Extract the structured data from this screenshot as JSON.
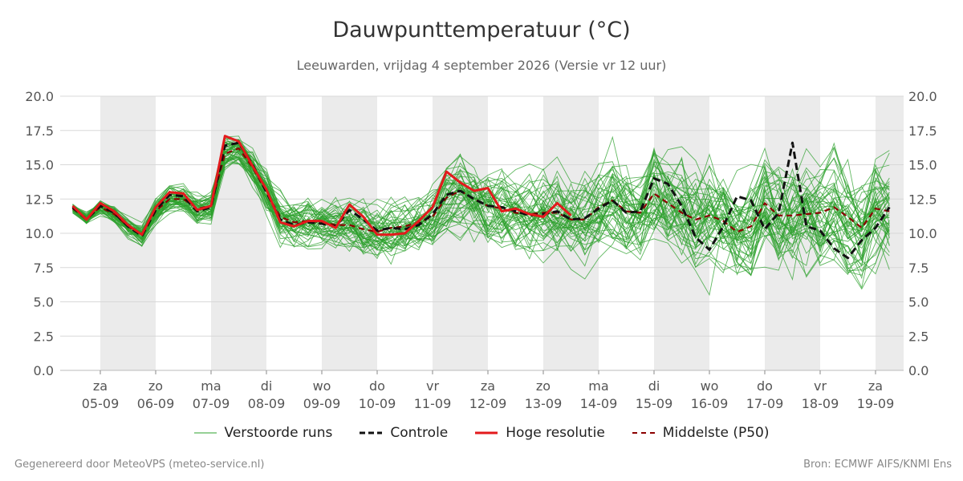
{
  "header": {
    "title": "Dauwpunttemperatuur (°C)",
    "subtitle": "Leeuwarden, vrijdag  4 september 2026 (Versie vr 12 uur)"
  },
  "footer": {
    "left": "Gegenereerd door MeteoVPS (meteo-service.nl)",
    "right": "Bron: ECMWF AIFS/KNMI Ens"
  },
  "legend": {
    "items": [
      {
        "label": "Verstoorde runs",
        "color": "#2ca02c",
        "style": "thin-solid"
      },
      {
        "label": "Controle",
        "color": "#111111",
        "style": "dashed"
      },
      {
        "label": "Hoge resolutie",
        "color": "#e31a1c",
        "style": "solid"
      },
      {
        "label": "Middelste (P50)",
        "color": "#8b0000",
        "style": "dashed"
      }
    ]
  },
  "chart_data": {
    "type": "line",
    "title": "Dauwpunttemperatuur (°C)",
    "ylim": [
      0,
      20
    ],
    "yticks": [
      0.0,
      2.5,
      5.0,
      7.5,
      10.0,
      12.5,
      15.0,
      17.5,
      20.0
    ],
    "ytick_labels": [
      "0.0",
      "2.5",
      "5.0",
      "7.5",
      "10.0",
      "12.5",
      "15.0",
      "17.5",
      "20.0"
    ],
    "xlim_days": [
      0,
      15.25
    ],
    "x_ticks": [
      {
        "day": "za",
        "date": "05-09"
      },
      {
        "day": "zo",
        "date": "06-09"
      },
      {
        "day": "ma",
        "date": "07-09"
      },
      {
        "day": "di",
        "date": "08-09"
      },
      {
        "day": "wo",
        "date": "09-09"
      },
      {
        "day": "do",
        "date": "10-09"
      },
      {
        "day": "vr",
        "date": "11-09"
      },
      {
        "day": "za",
        "date": "12-09"
      },
      {
        "day": "zo",
        "date": "13-09"
      },
      {
        "day": "ma",
        "date": "14-09"
      },
      {
        "day": "di",
        "date": "15-09"
      },
      {
        "day": "wo",
        "date": "16-09"
      },
      {
        "day": "do",
        "date": "17-09"
      },
      {
        "day": "vr",
        "date": "18-09"
      },
      {
        "day": "za",
        "date": "19-09"
      }
    ],
    "grid": true,
    "weekend_shading": true,
    "legend_position": "bottom-center",
    "colors": {
      "ensemble": "#2ca02c",
      "control": "#111111",
      "highres": "#e31a1c",
      "median": "#8b0000",
      "shade": "#ebebeb"
    },
    "series": [
      {
        "name": "Hoge resolutie",
        "x": [
          0.5,
          0.75,
          1.0,
          1.25,
          1.5,
          1.75,
          2.0,
          2.25,
          2.5,
          2.75,
          3.0,
          3.25,
          3.5,
          3.75,
          4.0,
          4.25,
          4.5,
          4.75,
          5.0,
          5.25,
          5.5,
          5.75,
          6.0,
          6.25,
          6.5,
          6.75,
          7.0,
          7.25,
          7.5,
          7.75,
          8.0,
          8.25,
          8.5,
          8.75,
          9.0,
          9.25,
          9.5
        ],
        "values": [
          12.0,
          11.0,
          12.2,
          11.6,
          10.6,
          9.9,
          11.9,
          13.0,
          12.9,
          11.7,
          12.0,
          17.1,
          16.7,
          14.9,
          13.2,
          10.8,
          10.5,
          10.9,
          10.9,
          10.4,
          12.1,
          11.2,
          9.9,
          9.9,
          10.0,
          10.9,
          11.9,
          14.5,
          13.7,
          13.1,
          13.3,
          11.6,
          11.8,
          11.4,
          11.2,
          12.2,
          11.3
        ]
      },
      {
        "name": "Controle",
        "x": [
          0.5,
          0.75,
          1.0,
          1.25,
          1.5,
          1.75,
          2.0,
          2.25,
          2.5,
          2.75,
          3.0,
          3.25,
          3.5,
          3.75,
          4.0,
          4.25,
          4.5,
          4.75,
          5.0,
          5.25,
          5.5,
          5.75,
          6.0,
          6.25,
          6.5,
          6.75,
          7.0,
          7.25,
          7.5,
          7.75,
          8.0,
          8.25,
          8.5,
          8.75,
          9.0,
          9.25,
          9.5,
          9.75,
          10.0,
          10.25,
          10.5,
          10.75,
          11.0,
          11.25,
          11.5,
          11.75,
          12.0,
          12.25,
          12.5,
          12.75,
          13.0,
          13.25,
          13.5,
          13.75,
          14.0,
          14.25,
          14.5,
          14.75,
          15.0,
          15.25
        ],
        "values": [
          11.9,
          11.0,
          12.0,
          11.5,
          10.5,
          9.8,
          11.7,
          12.8,
          12.7,
          11.6,
          11.9,
          16.4,
          16.6,
          15.0,
          13.0,
          11.0,
          10.6,
          10.8,
          10.7,
          10.5,
          11.7,
          11.0,
          10.2,
          10.4,
          10.3,
          10.6,
          11.4,
          12.8,
          13.1,
          12.5,
          12.0,
          11.9,
          11.6,
          11.3,
          11.4,
          11.6,
          11.0,
          11.1,
          11.8,
          12.4,
          11.5,
          11.6,
          14.0,
          13.6,
          12.0,
          9.7,
          8.8,
          10.5,
          12.7,
          12.4,
          10.3,
          11.5,
          16.6,
          10.5,
          10.2,
          8.9,
          8.2,
          9.5,
          10.4,
          11.9
        ]
      },
      {
        "name": "Middelste (P50)",
        "x": [
          0.5,
          0.75,
          1.0,
          1.25,
          1.5,
          1.75,
          2.0,
          2.25,
          2.5,
          2.75,
          3.0,
          3.25,
          3.5,
          3.75,
          4.0,
          4.25,
          4.5,
          4.75,
          5.0,
          5.25,
          5.5,
          5.75,
          6.0,
          6.25,
          6.5,
          6.75,
          7.0,
          7.25,
          7.5,
          7.75,
          8.0,
          8.25,
          8.5,
          8.75,
          9.0,
          9.25,
          9.5,
          9.75,
          10.0,
          10.25,
          10.5,
          10.75,
          11.0,
          11.25,
          11.5,
          11.75,
          12.0,
          12.25,
          12.5,
          12.75,
          13.0,
          13.25,
          13.5,
          13.75,
          14.0,
          14.25,
          14.5,
          14.75,
          15.0,
          15.25
        ],
        "values": [
          11.8,
          11.1,
          11.9,
          11.4,
          10.5,
          9.9,
          11.6,
          12.5,
          12.5,
          11.8,
          12.0,
          15.8,
          16.2,
          14.8,
          13.0,
          11.2,
          10.8,
          10.9,
          10.8,
          10.6,
          10.6,
          10.3,
          10.1,
          10.4,
          10.5,
          10.8,
          11.2,
          12.6,
          13.1,
          12.5,
          12.0,
          11.8,
          11.5,
          11.4,
          11.5,
          11.5,
          11.0,
          11.0,
          11.9,
          12.4,
          11.6,
          11.5,
          12.9,
          12.2,
          11.5,
          11.0,
          11.3,
          10.9,
          10.1,
          10.5,
          12.2,
          11.3,
          11.3,
          11.4,
          11.5,
          11.9,
          11.2,
          10.4,
          11.8,
          11.6
        ]
      }
    ],
    "ensemble_note": "Verstoorde runs"
  }
}
